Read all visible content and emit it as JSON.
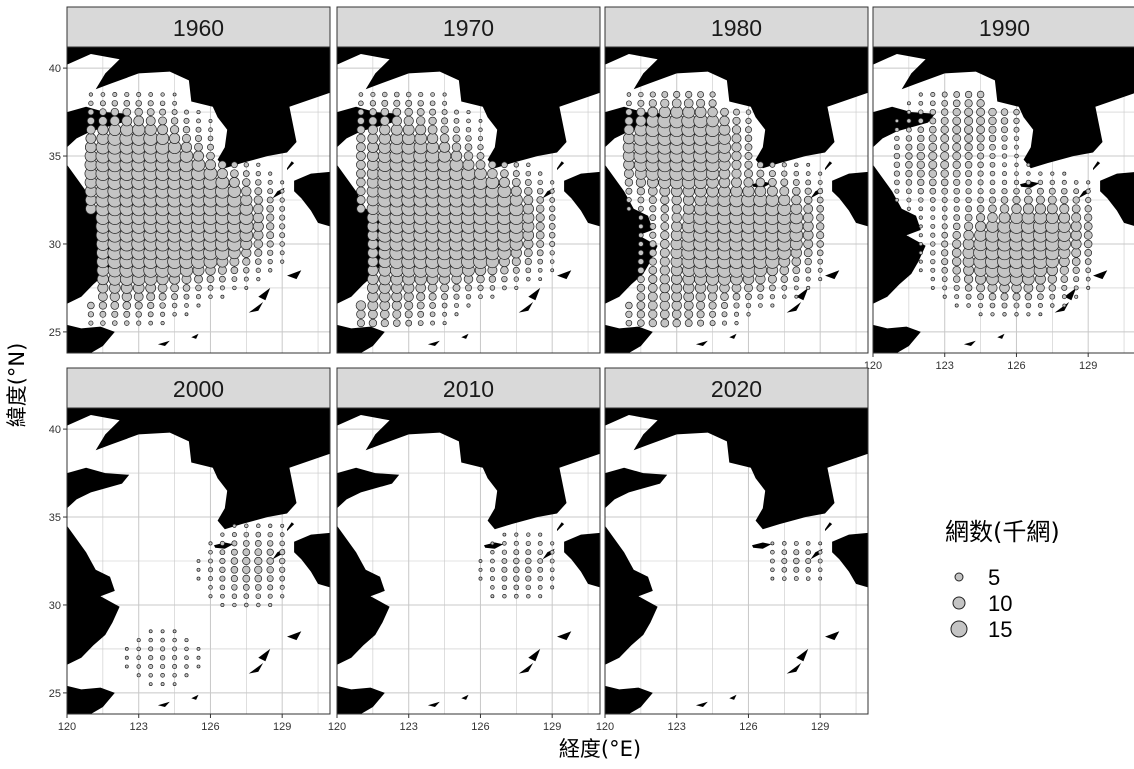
{
  "chart_data": {
    "type": "scatter",
    "subtype": "faceted bubble map",
    "facets": [
      "1960",
      "1970",
      "1980",
      "1990",
      "2000",
      "2010",
      "2020"
    ],
    "facet_layout": {
      "columns": 4,
      "rows": 2
    },
    "xlabel": "経度(°E)",
    "ylabel": "緯度(°N)",
    "xlim": [
      120,
      131
    ],
    "ylim": [
      23.8,
      41.2
    ],
    "x_ticks": [
      120,
      123,
      126,
      129
    ],
    "x_tick_labels": [
      "120",
      "123",
      "126",
      "129"
    ],
    "y_ticks": [
      25,
      30,
      35,
      40
    ],
    "y_tick_labels": [
      "25",
      "30",
      "35",
      "40"
    ],
    "grid": true,
    "legend": {
      "title": "網数(千網)",
      "placement": "right",
      "sizes": [
        5,
        10,
        15
      ],
      "labels": [
        "5",
        "10",
        "15"
      ]
    },
    "colors": {
      "bubble_fill": "#c4c4c4",
      "bubble_stroke": "#222222",
      "land": "#000000",
      "strip": "#d9d9d9",
      "panel_border": "#333333",
      "grid": "#c8c8c8"
    }
  }
}
